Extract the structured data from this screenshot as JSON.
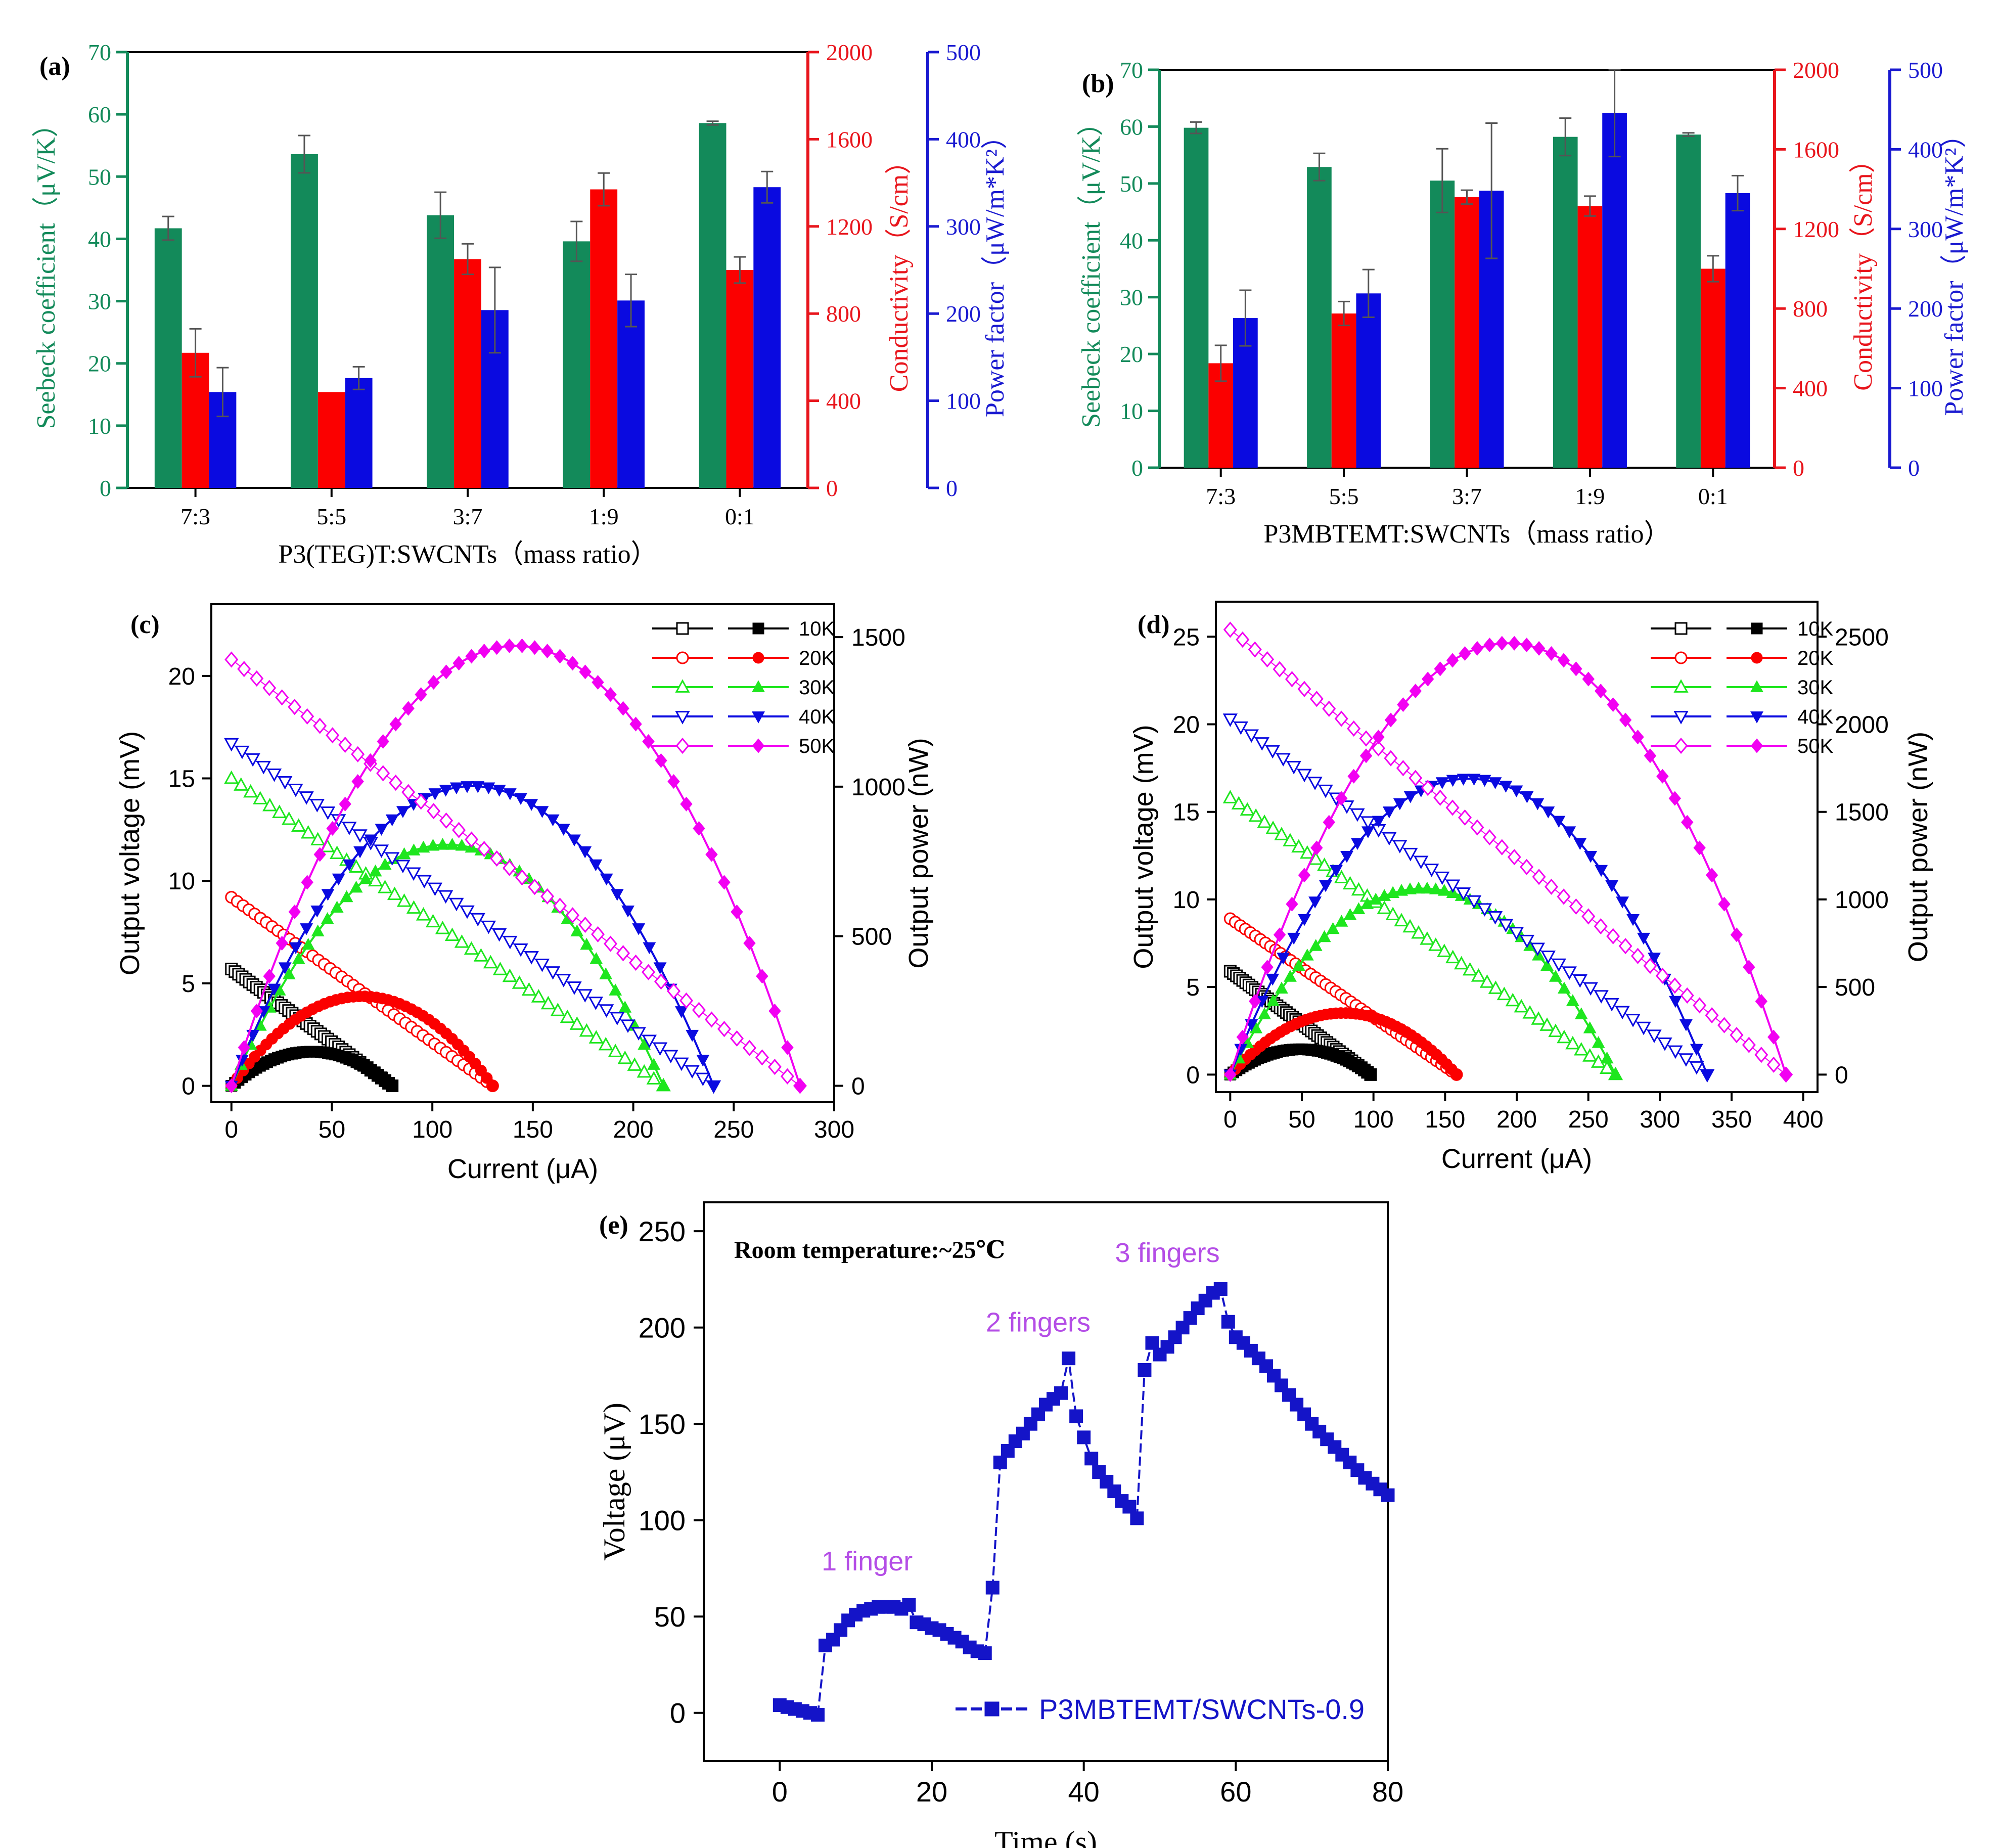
{
  "chart_data": [
    {
      "panel": "(a)",
      "type": "bar",
      "xlabel": "P3(TEG)T:SWCNTs（mass ratio）",
      "categories": [
        "7:3",
        "5:5",
        "3:7",
        "1:9",
        "0:1"
      ],
      "axes": [
        {
          "label": "Seebeck coefficient（μV/K）",
          "ylim": [
            0,
            70
          ],
          "ticks": [
            0,
            10,
            20,
            30,
            40,
            50,
            60,
            70
          ],
          "color": "#138a5a"
        },
        {
          "label": "Conductivity（S/cm）",
          "ylim": [
            0,
            2000
          ],
          "ticks": [
            0,
            400,
            800,
            1200,
            1600,
            2000
          ],
          "color": "#e8151c"
        },
        {
          "label": "Power factor（μW/m*K²）",
          "ylim": [
            0,
            500
          ],
          "ticks": [
            0,
            100,
            200,
            300,
            400,
            500
          ],
          "color": "#1a1ad0"
        }
      ],
      "series": [
        {
          "name": "Seebeck coefficient",
          "axis": 0,
          "color": "#138a5a",
          "values": [
            41.7,
            53.6,
            43.8,
            39.6,
            58.6
          ],
          "errors": [
            1.9,
            3.0,
            3.7,
            3.2,
            0.3
          ]
        },
        {
          "name": "Conductivity",
          "axis": 1,
          "color": "#fb0000",
          "values": [
            620,
            440,
            1050,
            1370,
            1000
          ],
          "errors": [
            110,
            0,
            70,
            75,
            60
          ]
        },
        {
          "name": "Power factor",
          "axis": 2,
          "color": "#0a0ae0",
          "values": [
            110,
            126,
            204,
            215,
            345
          ],
          "errors": [
            28,
            13,
            49,
            30,
            18
          ]
        }
      ]
    },
    {
      "panel": "(b)",
      "type": "bar",
      "xlabel": "P3MBTEMT:SWCNTs（mass ratio）",
      "categories": [
        "7:3",
        "5:5",
        "3:7",
        "1:9",
        "0:1"
      ],
      "axes": [
        {
          "label": "Seebeck coefficient（μV/K）",
          "ylim": [
            0,
            70
          ],
          "ticks": [
            0,
            10,
            20,
            30,
            40,
            50,
            60,
            70
          ],
          "color": "#138a5a"
        },
        {
          "label": "Conductivity（S/cm）",
          "ylim": [
            0,
            2000
          ],
          "ticks": [
            0,
            400,
            800,
            1200,
            1600,
            2000
          ],
          "color": "#e8151c"
        },
        {
          "label": "Power factor（μW/m*K²）",
          "ylim": [
            0,
            500
          ],
          "ticks": [
            0,
            100,
            200,
            300,
            400,
            500
          ],
          "color": "#1a1ad0"
        }
      ],
      "series": [
        {
          "name": "Seebeck coefficient",
          "axis": 0,
          "color": "#138a5a",
          "values": [
            59.8,
            52.9,
            50.5,
            58.2,
            58.6
          ],
          "errors": [
            1.0,
            2.4,
            5.6,
            3.3,
            0.3
          ]
        },
        {
          "name": "Conductivity",
          "axis": 1,
          "color": "#fb0000",
          "values": [
            525,
            775,
            1360,
            1315,
            1000
          ],
          "errors": [
            90,
            60,
            35,
            50,
            65
          ]
        },
        {
          "name": "Power factor",
          "axis": 2,
          "color": "#0a0ae0",
          "values": [
            188,
            219,
            348,
            446,
            345
          ],
          "errors": [
            35,
            30,
            85,
            55,
            22
          ]
        }
      ]
    },
    {
      "panel": "(c)",
      "type": "scatter",
      "xlabel": "Current (μA)",
      "ylabel": "Output voltage (mV)",
      "y2label": "Output power (nW)",
      "xlim": [
        -10,
        300
      ],
      "xticks": [
        0,
        50,
        100,
        150,
        200,
        250,
        300
      ],
      "ylim": [
        -0.8,
        23.5
      ],
      "yticks": [
        0,
        5,
        10,
        15,
        20
      ],
      "y2lim": [
        -55,
        1610
      ],
      "y2ticks": [
        0,
        500,
        1000,
        1500
      ],
      "series": [
        {
          "name": "10K",
          "color": "#000000",
          "marker": "square",
          "voc": 5.7,
          "isc": 80
        },
        {
          "name": "20K",
          "color": "#fb0000",
          "marker": "circle",
          "voc": 9.2,
          "isc": 130
        },
        {
          "name": "30K",
          "color": "#1ee61e",
          "marker": "triangle-up",
          "voc": 15.0,
          "isc": 215
        },
        {
          "name": "40K",
          "color": "#0a0ae0",
          "marker": "triangle-down",
          "voc": 16.7,
          "isc": 240
        },
        {
          "name": "50K",
          "color": "#f200f2",
          "marker": "diamond",
          "voc": 20.8,
          "isc": 283
        }
      ]
    },
    {
      "panel": "(d)",
      "type": "scatter",
      "xlabel": "Current (μA)",
      "ylabel": "Output voltage (mV)",
      "y2label": "Output power (nW)",
      "xlim": [
        -10,
        410
      ],
      "xticks": [
        0,
        50,
        100,
        150,
        200,
        250,
        300,
        350,
        400
      ],
      "ylim": [
        -1.0,
        27.0
      ],
      "yticks": [
        0,
        5,
        10,
        15,
        20,
        25
      ],
      "y2lim": [
        -100,
        2700
      ],
      "y2ticks": [
        0,
        500,
        1000,
        1500,
        2000,
        2500
      ],
      "series": [
        {
          "name": "10K",
          "color": "#000000",
          "marker": "square",
          "voc": 5.9,
          "isc": 98
        },
        {
          "name": "20K",
          "color": "#fb0000",
          "marker": "circle",
          "voc": 8.9,
          "isc": 158
        },
        {
          "name": "30K",
          "color": "#1ee61e",
          "marker": "triangle-up",
          "voc": 15.8,
          "isc": 269
        },
        {
          "name": "40K",
          "color": "#0a0ae0",
          "marker": "triangle-down",
          "voc": 20.3,
          "isc": 333
        },
        {
          "name": "50K",
          "color": "#f200f2",
          "marker": "diamond",
          "voc": 25.4,
          "isc": 388
        }
      ]
    },
    {
      "panel": "(e)",
      "type": "line",
      "xlabel": "Time (s)",
      "ylabel": "Voltage (μV)",
      "xlim": [
        -10,
        80
      ],
      "xticks": [
        0,
        20,
        40,
        60,
        80
      ],
      "ylim": [
        -25,
        265
      ],
      "yticks": [
        0,
        50,
        100,
        150,
        200,
        250
      ],
      "note": "Room temperature:~25℃",
      "annotations": [
        {
          "text": "1 finger",
          "x": 11.5,
          "y": 74
        },
        {
          "text": "2 fingers",
          "x": 34,
          "y": 198
        },
        {
          "text": "3 fingers",
          "x": 51,
          "y": 234
        }
      ],
      "series": [
        {
          "name": "P3MBTEMT/SWCNTs-0.9",
          "color": "#1414c8",
          "marker": "square",
          "x": [
            0,
            1,
            2,
            3,
            4,
            5,
            6,
            7,
            8,
            9,
            10,
            11,
            12,
            13,
            14,
            15,
            16,
            17,
            18,
            19,
            20,
            21,
            22,
            23,
            24,
            25,
            26,
            27,
            28,
            29,
            30,
            31,
            32,
            33,
            34,
            35,
            36,
            37,
            38,
            39,
            40,
            41,
            42,
            43,
            44,
            45,
            46,
            47,
            48,
            49,
            50,
            51,
            52,
            53,
            54,
            55,
            56,
            57,
            58,
            59,
            60,
            61,
            62,
            63,
            64,
            65,
            66,
            67,
            68,
            69,
            70,
            71,
            72,
            73,
            74,
            75,
            76,
            77,
            78,
            79,
            80
          ],
          "y": [
            4,
            3,
            2,
            1,
            0,
            -1,
            35,
            38,
            43,
            48,
            51,
            53,
            54,
            55,
            55,
            55,
            54,
            56,
            47,
            46,
            44,
            43,
            41,
            39,
            37,
            34,
            32,
            31,
            65,
            130,
            136,
            141,
            145,
            150,
            155,
            160,
            163,
            166,
            184,
            154,
            143,
            132,
            125,
            120,
            115,
            110,
            107,
            101,
            178,
            192,
            186,
            190,
            195,
            200,
            205,
            210,
            214,
            218,
            220,
            203,
            195,
            192,
            188,
            184,
            180,
            175,
            170,
            165,
            160,
            155,
            150,
            146,
            142,
            138,
            134,
            130,
            126,
            122,
            119,
            116,
            113
          ]
        }
      ]
    }
  ]
}
